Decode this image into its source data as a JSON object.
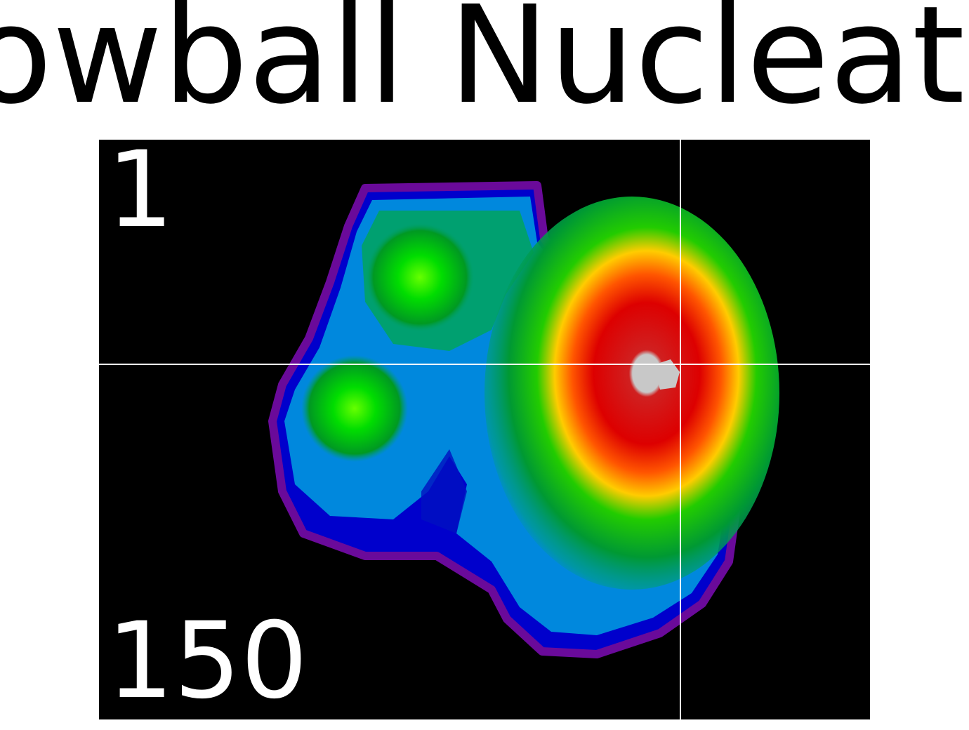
{
  "header": {
    "title": "Snowball Nucleation"
  },
  "viewer": {
    "top_label": "1",
    "bottom_label": "150"
  }
}
